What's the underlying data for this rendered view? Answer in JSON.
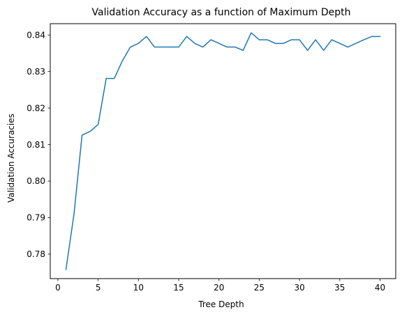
{
  "chart_data": {
    "type": "line",
    "title": "Validation Accuracy as a function of Maximum Depth",
    "xlabel": "Tree Depth",
    "ylabel": "Validation Accuracies",
    "xlim": [
      -0.95,
      41.95
    ],
    "ylim": [
      0.7733,
      0.8431
    ],
    "xticks": [
      0,
      5,
      10,
      15,
      20,
      25,
      30,
      35,
      40
    ],
    "yticks": [
      0.78,
      0.79,
      0.8,
      0.81,
      0.82,
      0.83,
      0.84
    ],
    "ytick_labels": [
      "0.78",
      "0.79",
      "0.80",
      "0.81",
      "0.82",
      "0.83",
      "0.84"
    ],
    "grid": false,
    "legend": null,
    "series": [
      {
        "color": "#1f77b4",
        "x": [
          1,
          2,
          3,
          4,
          5,
          6,
          7,
          8,
          9,
          10,
          11,
          12,
          13,
          14,
          15,
          16,
          17,
          18,
          19,
          20,
          21,
          22,
          23,
          24,
          25,
          26,
          27,
          28,
          29,
          30,
          31,
          32,
          33,
          34,
          35,
          36,
          37,
          38,
          39,
          40
        ],
        "y": [
          0.7758,
          0.791,
          0.8126,
          0.8136,
          0.8155,
          0.8281,
          0.8281,
          0.8329,
          0.8367,
          0.8377,
          0.8396,
          0.8367,
          0.8367,
          0.8367,
          0.8367,
          0.8396,
          0.8377,
          0.8367,
          0.8387,
          0.8377,
          0.8367,
          0.8367,
          0.8358,
          0.8406,
          0.8387,
          0.8387,
          0.8377,
          0.8377,
          0.8387,
          0.8387,
          0.8358,
          0.8387,
          0.8358,
          0.8387,
          0.8377,
          0.8367,
          0.8377,
          0.8387,
          0.8396,
          0.8396
        ]
      }
    ]
  }
}
